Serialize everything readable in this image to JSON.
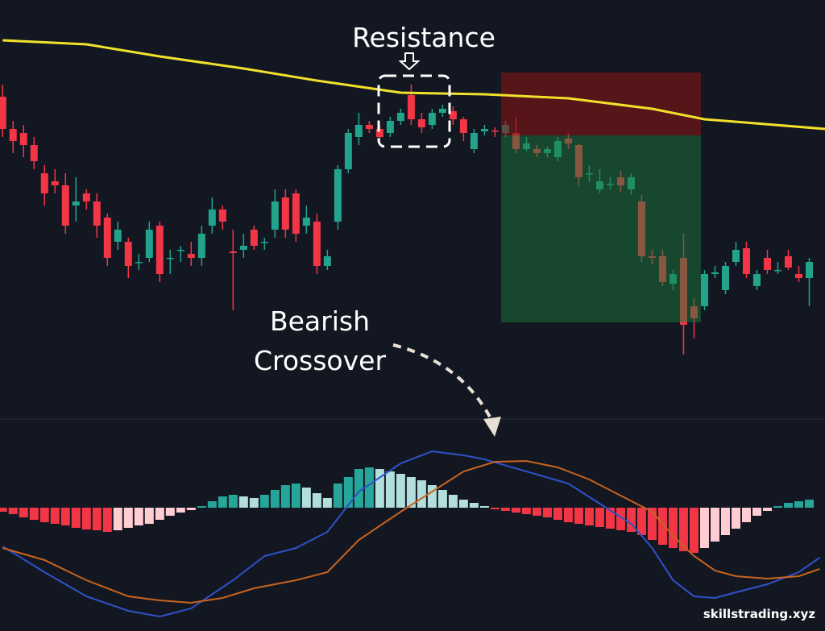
{
  "chart_data": [
    {
      "type": "candlestick",
      "xlim": [
        -0.25,
        78.5
      ],
      "ylim": [
        0,
        500
      ],
      "up_color": "#22a38b",
      "down_color": "#f23645",
      "open": [
        380,
        340,
        335,
        320,
        285,
        275,
        270,
        245,
        260,
        250,
        230,
        200,
        200,
        175,
        180,
        220,
        180,
        190,
        185,
        180,
        220,
        240,
        188,
        190,
        215,
        200,
        215,
        255,
        260,
        220,
        225,
        170,
        225,
        290,
        330,
        345,
        340,
        335,
        350,
        382,
        352,
        345,
        360,
        362,
        352,
        315,
        337,
        338,
        335,
        335,
        315,
        315,
        310,
        305,
        328,
        320,
        285,
        265,
        272,
        280,
        265,
        250,
        182,
        182,
        148,
        180,
        120,
        120,
        160,
        140,
        175,
        192,
        145,
        180,
        165,
        182,
        160,
        155
      ],
      "high": [
        395,
        350,
        345,
        330,
        295,
        290,
        285,
        280,
        265,
        260,
        235,
        225,
        205,
        185,
        225,
        225,
        190,
        195,
        200,
        220,
        255,
        245,
        215,
        210,
        220,
        205,
        265,
        265,
        265,
        245,
        235,
        190,
        295,
        340,
        360,
        350,
        345,
        355,
        365,
        395,
        360,
        365,
        370,
        368,
        355,
        340,
        345,
        342,
        350,
        355,
        330,
        320,
        318,
        330,
        335,
        322,
        295,
        290,
        280,
        288,
        285,
        258,
        190,
        190,
        165,
        210,
        130,
        165,
        170,
        175,
        200,
        200,
        165,
        190,
        175,
        190,
        170,
        180
      ],
      "low": [
        330,
        310,
        305,
        290,
        245,
        260,
        210,
        225,
        240,
        205,
        170,
        190,
        155,
        165,
        175,
        150,
        160,
        175,
        170,
        170,
        210,
        215,
        115,
        180,
        190,
        190,
        205,
        205,
        200,
        210,
        160,
        165,
        215,
        285,
        320,
        335,
        325,
        330,
        345,
        345,
        335,
        340,
        355,
        345,
        325,
        310,
        332,
        330,
        330,
        310,
        312,
        305,
        305,
        300,
        315,
        270,
        275,
        260,
        265,
        262,
        258,
        175,
        172,
        145,
        140,
        60,
        80,
        115,
        155,
        135,
        170,
        155,
        140,
        160,
        160,
        165,
        150,
        120
      ],
      "close": [
        340,
        325,
        320,
        300,
        260,
        270,
        220,
        250,
        250,
        220,
        180,
        215,
        170,
        175,
        215,
        160,
        180,
        190,
        180,
        210,
        240,
        225,
        186,
        195,
        195,
        200,
        250,
        215,
        210,
        230,
        170,
        182,
        290,
        335,
        345,
        340,
        330,
        350,
        360,
        352,
        342,
        360,
        365,
        352,
        335,
        335,
        340,
        337,
        345,
        315,
        322,
        310,
        315,
        325,
        322,
        280,
        285,
        275,
        272,
        270,
        280,
        182,
        180,
        150,
        160,
        97,
        105,
        160,
        162,
        170,
        190,
        160,
        160,
        165,
        165,
        168,
        155,
        175
      ],
      "overlay": {
        "color": "#f2e12c",
        "x": [
          0,
          8,
          15,
          23,
          30,
          38,
          46,
          54,
          62,
          67,
          78.5
        ],
        "values": [
          450,
          445,
          430,
          415,
          400,
          385,
          383,
          378,
          365,
          352,
          340
        ]
      }
    },
    {
      "type": "macd",
      "xlim": [
        -0.25,
        78.5
      ],
      "ylim": [
        -150,
        150
      ],
      "hist_colors": {
        "up_strong": "#26a69a",
        "up_weak": "#b2dfdb",
        "down_strong": "#f23645",
        "down_weak": "#ffcdd2"
      },
      "histogram": [
        -5,
        -8,
        -12,
        -15,
        -18,
        -20,
        -22,
        -25,
        -27,
        -28,
        -30,
        -28,
        -25,
        -22,
        -20,
        -15,
        -10,
        -6,
        -3,
        2,
        8,
        14,
        16,
        14,
        12,
        16,
        22,
        28,
        30,
        25,
        18,
        12,
        30,
        38,
        48,
        50,
        48,
        45,
        42,
        38,
        34,
        28,
        22,
        16,
        10,
        6,
        2,
        -2,
        -4,
        -6,
        -8,
        -10,
        -12,
        -15,
        -18,
        -20,
        -22,
        -24,
        -26,
        -28,
        -30,
        -34,
        -40,
        -46,
        -50,
        -54,
        -56,
        -50,
        -42,
        -34,
        -26,
        -18,
        -10,
        -4,
        2,
        6,
        8,
        10
      ],
      "series": [
        {
          "color": "#2f52c8",
          "x": [
            0,
            4,
            8,
            12,
            15,
            18,
            22,
            25,
            28,
            31,
            34,
            38,
            41,
            44,
            46,
            50,
            54,
            57,
            60,
            62,
            64,
            66,
            68,
            70,
            73,
            76,
            78
          ],
          "values": [
            -48,
            -80,
            -110,
            -128,
            -135,
            -125,
            -90,
            -60,
            -50,
            -30,
            20,
            55,
            70,
            65,
            60,
            45,
            30,
            5,
            -20,
            -50,
            -90,
            -110,
            -112,
            -105,
            -95,
            -80,
            -62
          ]
        },
        {
          "color": "#c8641e",
          "x": [
            0,
            4,
            8,
            12,
            15,
            18,
            21,
            24,
            28,
            31,
            34,
            38,
            41,
            44,
            47,
            50,
            53,
            56,
            59,
            62,
            64,
            66,
            68,
            70,
            73,
            76,
            78
          ],
          "values": [
            -50,
            -65,
            -90,
            -110,
            -115,
            -118,
            -112,
            -100,
            -90,
            -80,
            -40,
            -5,
            20,
            45,
            57,
            58,
            50,
            35,
            15,
            -5,
            -35,
            -60,
            -78,
            -85,
            -88,
            -85,
            -76
          ]
        }
      ]
    }
  ],
  "annotations": {
    "resistance": "Resistance",
    "bearish": "Bearish",
    "crossover": "Crossover"
  },
  "watermark": "skillstrading.xyz"
}
